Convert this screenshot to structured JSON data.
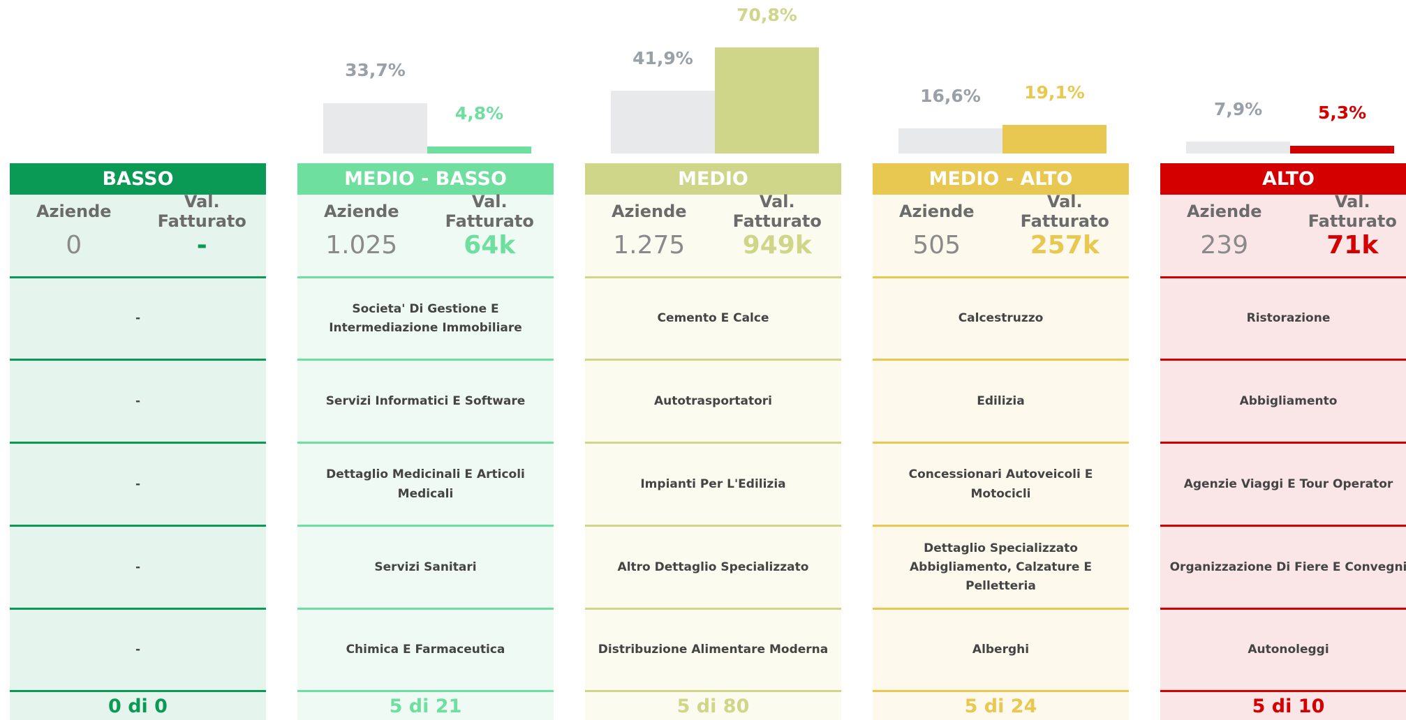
{
  "columns": [
    {
      "name": "BASSO",
      "color": "#0a9a55",
      "background": "#e6f4ee",
      "headers": [
        "Aziende",
        "Val. Fatturato"
      ],
      "companies": "0",
      "revenue": "-",
      "items": [
        "-",
        "-",
        "-",
        "-",
        "-"
      ],
      "footer": "0 di 0"
    },
    {
      "name": "MEDIO - BASSO",
      "color": "#6fdfa0",
      "background": "#effaf4",
      "headers": [
        "Aziende",
        "Val. Fatturato"
      ],
      "companies": "1.025",
      "revenue": "64k",
      "bars": {
        "colors": [
          "#e8e9eb",
          "#6fdfa0"
        ],
        "values": [
          33.7,
          4.8
        ],
        "value_labels": [
          "33,7%",
          "4,8%"
        ]
      },
      "items": [
        "Societa' Di Gestione E Intermediazione Immobiliare",
        "Servizi Informatici E Software",
        "Dettaglio Medicinali E Articoli Medicali",
        "Servizi Sanitari",
        "Chimica E Farmaceutica"
      ],
      "footer": "5 di 21"
    },
    {
      "name": "MEDIO",
      "color": "#cfd68a",
      "background": "#fbfcef",
      "headers": [
        "Aziende",
        "Val. Fatturato"
      ],
      "companies": "1.275",
      "revenue": "949k",
      "bars": {
        "colors": [
          "#e8e9eb",
          "#cfd68a"
        ],
        "values": [
          41.9,
          70.8
        ],
        "value_labels": [
          "41,9%",
          "70,8%"
        ]
      },
      "items": [
        "Cemento E Calce",
        "Autotrasportatori",
        "Impianti Per L'Edilizia",
        "Altro Dettaglio Specializzato",
        "Distribuzione Alimentare Moderna"
      ],
      "footer": "5 di 80"
    },
    {
      "name": "MEDIO - ALTO",
      "color": "#e8c850",
      "background": "#fdf9ec",
      "headers": [
        "Aziende",
        "Val. Fatturato"
      ],
      "companies": "505",
      "revenue": "257k",
      "bars": {
        "colors": [
          "#e8e9eb",
          "#e8c850"
        ],
        "values": [
          16.6,
          19.1
        ],
        "value_labels": [
          "16,6%",
          "19,1%"
        ]
      },
      "items": [
        "Calcestruzzo",
        "Edilizia",
        "Concessionari Autoveicoli E Motocicli",
        "Dettaglio Specializzato Abbigliamento, Calzature E Pelletteria",
        "Alberghi"
      ],
      "footer": "5 di 24"
    },
    {
      "name": "ALTO",
      "color": "#d40000",
      "background": "#fae6e6",
      "headers": [
        "Aziende",
        "Val. Fatturato"
      ],
      "companies": "239",
      "revenue": "71k",
      "bars": {
        "colors": [
          "#e8e9eb",
          "#d40000"
        ],
        "values": [
          7.9,
          5.3
        ],
        "value_labels": [
          "7,9%",
          "5,3%"
        ]
      },
      "items": [
        "Ristorazione",
        "Abbigliamento",
        "Agenzie Viaggi E Tour Operator",
        "Organizzazione Di Fiere E Convegni",
        "Autonoleggi"
      ],
      "footer": "5 di 10"
    }
  ]
}
